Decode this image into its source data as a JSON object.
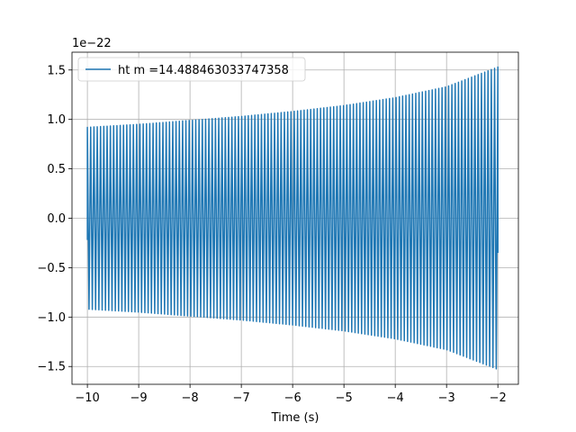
{
  "chart_data": {
    "type": "line",
    "title": "",
    "xlabel": "Time (s)",
    "ylabel": "",
    "xlim": [
      -10.3,
      -1.6
    ],
    "ylim": [
      -1.68,
      1.68
    ],
    "y_scale_label": "1e−22",
    "xticks": [
      -10,
      -9,
      -8,
      -7,
      -6,
      -5,
      -4,
      -3,
      -2
    ],
    "xtick_labels": [
      "−10",
      "−9",
      "−8",
      "−7",
      "−6",
      "−5",
      "−4",
      "−3",
      "−2"
    ],
    "yticks": [
      -1.5,
      -1.0,
      -0.5,
      0.0,
      0.5,
      1.0,
      1.5
    ],
    "ytick_labels": [
      "−1.5",
      "−1.0",
      "−0.5",
      "0.0",
      "0.5",
      "1.0",
      "1.5"
    ],
    "grid": true,
    "legend_position": "upper-left",
    "series": [
      {
        "name": "ht m =14.488463033747358",
        "color": "#1f77b4",
        "x_start": -10,
        "x_end": -2,
        "envelope": {
          "x": [
            -10,
            -9,
            -8,
            -7,
            -6,
            -5,
            -4,
            -3,
            -2
          ],
          "amplitude": [
            0.92,
            0.95,
            0.99,
            1.03,
            1.08,
            1.14,
            1.22,
            1.33,
            1.53
          ]
        },
        "start_value": -0.22,
        "end_value": -0.35
      }
    ]
  }
}
